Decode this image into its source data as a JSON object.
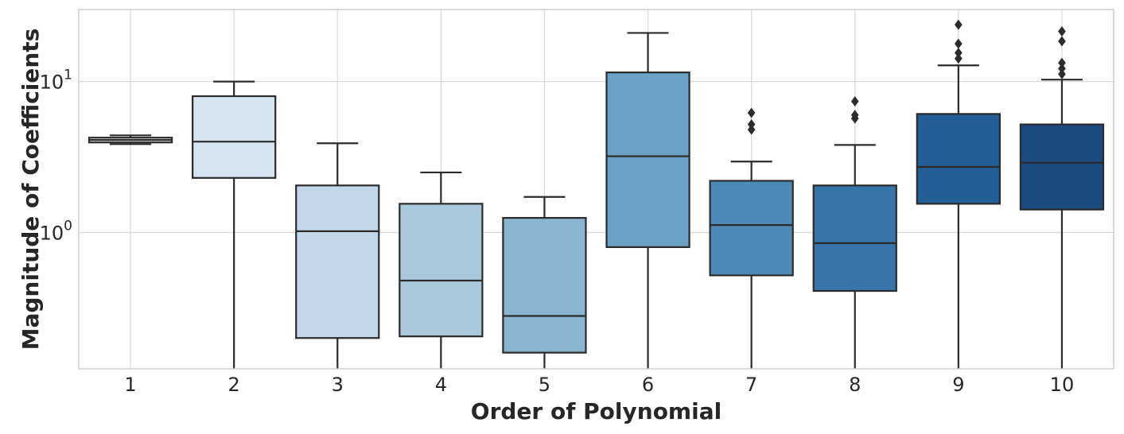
{
  "chart_data": {
    "type": "box",
    "title": "",
    "xlabel": "Order of Polynomial",
    "ylabel": "Magnitude of Coefficients",
    "yscale": "log",
    "ylim": [
      0.125,
      30
    ],
    "grid": true,
    "y_ticks": [
      {
        "value": 1,
        "base": "10",
        "exp": "0"
      },
      {
        "value": 10,
        "base": "10",
        "exp": "1"
      }
    ],
    "categories": [
      "1",
      "2",
      "3",
      "4",
      "5",
      "6",
      "7",
      "8",
      "9",
      "10"
    ],
    "boxes": [
      {
        "category": "1",
        "whislo": 3.85,
        "q1": 3.95,
        "med": 4.1,
        "q3": 4.25,
        "whishi": 4.4,
        "fliers": [],
        "color": "#ececec"
      },
      {
        "category": "2",
        "whislo": 0.1,
        "q1": 2.3,
        "med": 4.0,
        "q3": 8.0,
        "whishi": 10.0,
        "fliers": [],
        "color": "#d6e3f0"
      },
      {
        "category": "3",
        "whislo": 0.1,
        "q1": 0.2,
        "med": 1.02,
        "q3": 2.05,
        "whishi": 3.9,
        "fliers": [],
        "color": "#c3d7e8"
      },
      {
        "category": "4",
        "whislo": 0.1,
        "q1": 0.205,
        "med": 0.48,
        "q3": 1.55,
        "whishi": 2.5,
        "fliers": [],
        "color": "#a9c8dc"
      },
      {
        "category": "5",
        "whislo": 0.1,
        "q1": 0.16,
        "med": 0.28,
        "q3": 1.25,
        "whishi": 1.72,
        "fliers": [],
        "color": "#8ab5d0"
      },
      {
        "category": "6",
        "whislo": 0.1,
        "q1": 0.8,
        "med": 3.2,
        "q3": 11.5,
        "whishi": 21.0,
        "fliers": [],
        "color": "#6aa1c4"
      },
      {
        "category": "7",
        "whislo": 0.1,
        "q1": 0.52,
        "med": 1.12,
        "q3": 2.2,
        "whishi": 2.95,
        "fliers": [
          4.8,
          5.2,
          6.2
        ],
        "color": "#4e8ab7"
      },
      {
        "category": "8",
        "whislo": 0.1,
        "q1": 0.41,
        "med": 0.85,
        "q3": 2.05,
        "whishi": 3.8,
        "fliers": [
          5.7,
          6.0,
          7.4
        ],
        "color": "#3674aa"
      },
      {
        "category": "9",
        "whislo": 0.1,
        "q1": 1.55,
        "med": 2.72,
        "q3": 6.1,
        "whishi": 12.8,
        "fliers": [
          14.2,
          15.5,
          17.8,
          23.8
        ],
        "color": "#245e96"
      },
      {
        "category": "10",
        "whislo": 0.1,
        "q1": 1.42,
        "med": 2.9,
        "q3": 5.2,
        "whishi": 10.3,
        "fliers": [
          11.2,
          12.2,
          13.3,
          18.5,
          21.5
        ],
        "color": "#1b4a80"
      }
    ]
  }
}
